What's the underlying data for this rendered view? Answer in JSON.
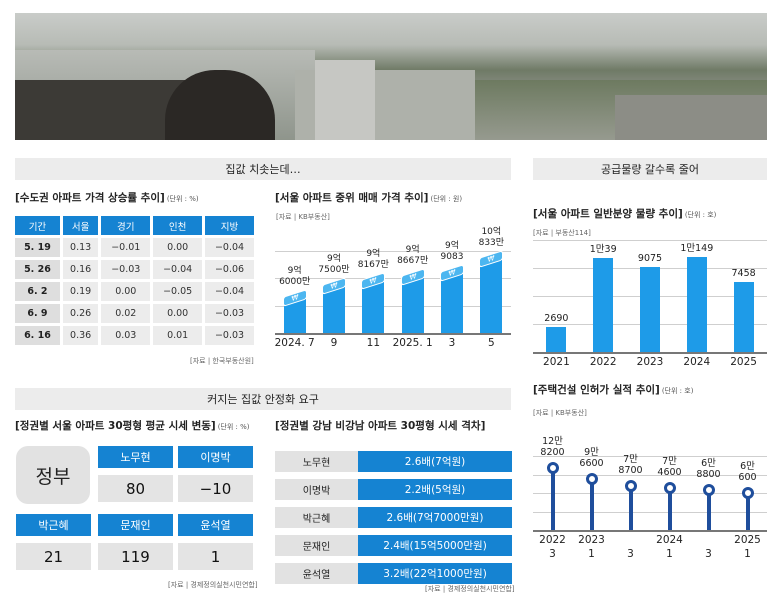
{
  "sections": {
    "top_left": "집값 치솟는데…",
    "top_right": "공급물량 갈수록 줄어",
    "bottom_left": "커지는 집값 안정화 요구"
  },
  "table1": {
    "title": "[수도권  아파트 가격 상승률 추이]",
    "unit": "(단위 : %)",
    "headers": [
      "기간",
      "서울",
      "경기",
      "인천",
      "지방"
    ],
    "rows": [
      [
        "5. 19",
        "0.13",
        "−0.01",
        "0.00",
        "−0.04"
      ],
      [
        "5. 26",
        "0.16",
        "−0.03",
        "−0.04",
        "−0.06"
      ],
      [
        "6. 2",
        "0.19",
        "0.00",
        "−0.05",
        "−0.04"
      ],
      [
        "6. 9",
        "0.26",
        "0.02",
        "0.00",
        "−0.03"
      ],
      [
        "6. 16",
        "0.36",
        "0.03",
        "0.01",
        "−0.03"
      ]
    ],
    "source": "[자료 | 한국부동산원]"
  },
  "grid1": {
    "title": "[정권별 서울 아파트 30평형 평균 시세 변동]",
    "unit": "(단위 : %)",
    "corner": "정부",
    "items": [
      {
        "name": "노무현",
        "value": "80"
      },
      {
        "name": "이명박",
        "value": "−10"
      },
      {
        "name": "박근혜",
        "value": "21"
      },
      {
        "name": "문재인",
        "value": "119"
      },
      {
        "name": "윤석열",
        "value": "1"
      }
    ],
    "source": "[자료 | 경제정의실천시민연합]"
  },
  "gap_table": {
    "title": "[정권별 강남 비강남 아파트 30평형 시세 격차]",
    "rows": [
      {
        "name": "노무현",
        "value": "2.6배(7억원)"
      },
      {
        "name": "이명박",
        "value": "2.2배(5억원)"
      },
      {
        "name": "박근혜",
        "value": "2.6배(7억7000만원)"
      },
      {
        "name": "문재인",
        "value": "2.4배(15억5000만원)"
      },
      {
        "name": "윤석열",
        "value": "3.2배(22억1000만원)"
      }
    ],
    "source": "[자료 | 경제정의실천시민연합]"
  },
  "colors": {
    "accent": "#1583d2",
    "bar": "#1e9be8",
    "lollipop": "#1f4e9c"
  },
  "chart_data": [
    {
      "type": "bar",
      "title": "[서울 아파트 중위 매매 가격 추이]",
      "unit": "(단위 : 원)",
      "source": "[자료 | KB부동산]",
      "categories": [
        "2024. 7",
        "9",
        "11",
        "2025. 1",
        "3",
        "5"
      ],
      "values": [
        960000000,
        975000000,
        981670000,
        986670000,
        990830000,
        1008330000
      ],
      "data_labels": [
        [
          "9억",
          "6000만"
        ],
        [
          "9억",
          "7500만"
        ],
        [
          "9억",
          "8167만"
        ],
        [
          "9억",
          "8667만"
        ],
        [
          "9억",
          "9083"
        ],
        [
          "10억",
          "833만"
        ]
      ],
      "ylim": [
        918000000,
        1020000000
      ],
      "grid": true
    },
    {
      "type": "bar",
      "title": "[서울 아파트 일반분양 물량 추이]",
      "unit": "(단위 : 호)",
      "source": "[자료 | 부동산114]",
      "categories": [
        "2021",
        "2022",
        "2023",
        "2024",
        "2025"
      ],
      "values": [
        2690,
        10039,
        9075,
        10149,
        7458
      ],
      "data_labels": [
        "2690",
        "1만39",
        "9075",
        "1만149",
        "7458"
      ],
      "ylim": [
        0,
        12000
      ],
      "grid": true
    },
    {
      "type": "line",
      "style": "lollipop",
      "title": "[주택건설 인허가 실적 추이]",
      "unit": "(단위 : 호)",
      "source": "[자료 | KB부동산]",
      "categories": [
        [
          "2022",
          "3"
        ],
        [
          "2023",
          "1"
        ],
        [
          "",
          "3"
        ],
        [
          "2024",
          "1"
        ],
        [
          "",
          "3"
        ],
        [
          "2025",
          "1"
        ]
      ],
      "values": [
        128200,
        96600,
        78700,
        74600,
        68800,
        60600
      ],
      "data_labels": [
        [
          "12만",
          "8200"
        ],
        [
          "9만",
          "6600"
        ],
        [
          "7만",
          "8700"
        ],
        [
          "7만",
          "4600"
        ],
        [
          "6만",
          "8800"
        ],
        [
          "6만",
          "600"
        ]
      ],
      "ylim": [
        -40000,
        160000
      ],
      "grid": true
    }
  ]
}
